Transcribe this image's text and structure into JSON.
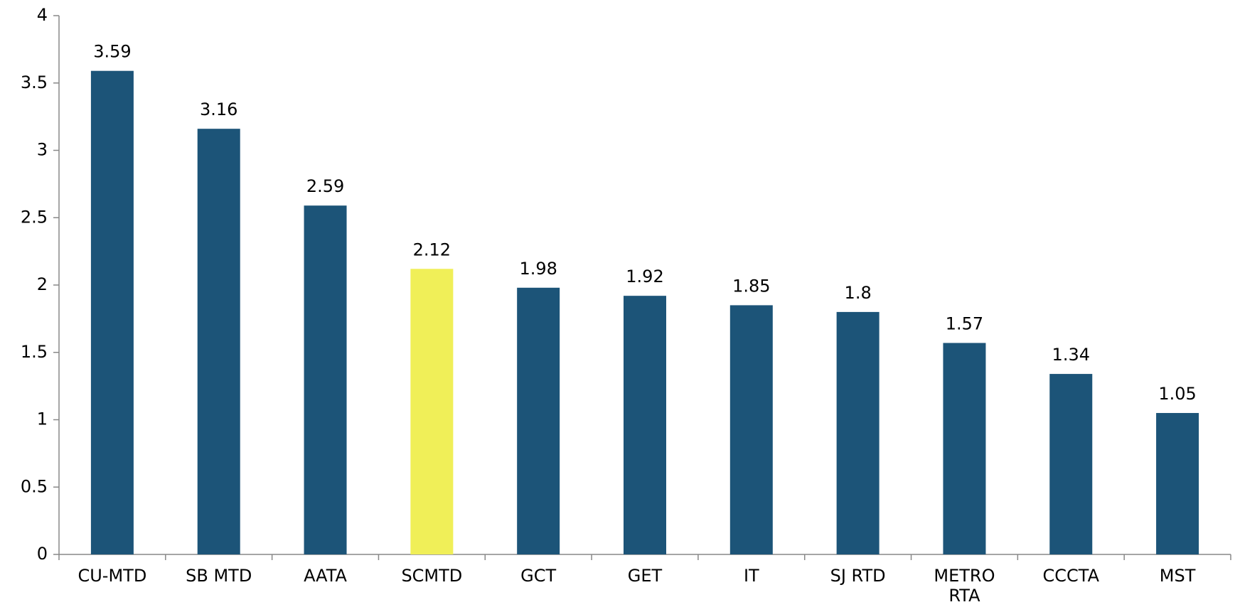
{
  "chart_data": {
    "type": "bar",
    "categories": [
      "CU-MTD",
      "SB MTD",
      "AATA",
      "SCMTD",
      "GCT",
      "GET",
      "IT",
      "SJ RTD",
      "METRO RTA",
      "CCCTA",
      "MST"
    ],
    "values": [
      3.59,
      3.16,
      2.59,
      2.12,
      1.98,
      1.92,
      1.85,
      1.8,
      1.57,
      1.34,
      1.05
    ],
    "colors": [
      "#1c5478",
      "#1c5478",
      "#1c5478",
      "#f0ef58",
      "#1c5478",
      "#1c5478",
      "#1c5478",
      "#1c5478",
      "#1c5478",
      "#1c5478",
      "#1c5478"
    ],
    "ylim": [
      0,
      4
    ],
    "yticks": [
      0,
      0.5,
      1,
      1.5,
      2,
      2.5,
      3,
      3.5,
      4
    ],
    "grid": false
  }
}
